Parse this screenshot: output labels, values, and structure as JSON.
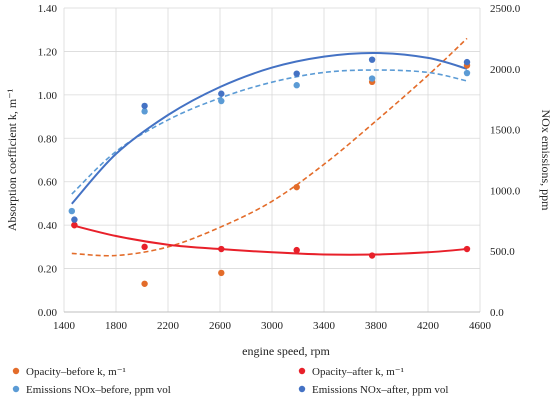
{
  "chart_data": {
    "type": "scatter",
    "title": "",
    "xlabel": "engine speed, rpm",
    "ylabel_left": "Absorption coefficient k, m⁻¹",
    "ylabel_right": "NOx emissions, ppm",
    "xlim": [
      1400,
      4600
    ],
    "xticks": [
      1400,
      1800,
      2200,
      2600,
      3000,
      3400,
      3800,
      4200,
      4600
    ],
    "ylim_left": [
      0,
      1.4
    ],
    "yticks_left": [
      "0.00",
      "0.20",
      "0.40",
      "0.60",
      "0.80",
      "1.00",
      "1.20",
      "1.40"
    ],
    "ylim_right": [
      0,
      2500
    ],
    "yticks_right": [
      "0.0",
      "500.0",
      "1000.0",
      "1500.0",
      "2000.0",
      "2500.0"
    ],
    "grid": true,
    "legend_position": "bottom",
    "series": [
      {
        "name": "Opacity–before  k, m⁻¹",
        "axis": "left",
        "color": "#e36c2a",
        "trendline": "dashed",
        "x": [
          1480,
          2020,
          2610,
          3190,
          3770,
          4500
        ],
        "y": [
          0.4,
          0.13,
          0.18,
          0.575,
          1.06,
          1.135
        ]
      },
      {
        "name": "Opacity–after  k, m⁻¹",
        "axis": "left",
        "color": "#e8202a",
        "trendline": "solid",
        "x": [
          1480,
          2020,
          2610,
          3190,
          3770,
          4500
        ],
        "y": [
          0.4,
          0.3,
          0.29,
          0.285,
          0.26,
          0.29
        ]
      },
      {
        "name": "Emissions NOx–before, ppm vol",
        "axis": "right",
        "color": "#5b9bd5",
        "trendline": "dashed",
        "x": [
          1460,
          2020,
          2610,
          3190,
          3770,
          4500
        ],
        "y": [
          830,
          1650,
          1735,
          1865,
          1920,
          1965
        ]
      },
      {
        "name": "Emissions NOx–after, ppm vol",
        "axis": "right",
        "color": "#4472c4",
        "trendline": "solid",
        "x": [
          1480,
          2020,
          2610,
          3190,
          3770,
          4500
        ],
        "y": [
          760,
          1695,
          1795,
          1960,
          2075,
          2055
        ]
      }
    ],
    "trendlines": {
      "opacity_before": [
        [
          1460,
          0.27
        ],
        [
          1800,
          0.26
        ],
        [
          2200,
          0.3
        ],
        [
          2600,
          0.39
        ],
        [
          3000,
          0.51
        ],
        [
          3400,
          0.68
        ],
        [
          3800,
          0.88
        ],
        [
          4200,
          1.09
        ],
        [
          4500,
          1.26
        ]
      ],
      "opacity_after": [
        [
          1460,
          0.4
        ],
        [
          1800,
          0.35
        ],
        [
          2200,
          0.31
        ],
        [
          2600,
          0.29
        ],
        [
          3000,
          0.275
        ],
        [
          3400,
          0.265
        ],
        [
          3800,
          0.265
        ],
        [
          4200,
          0.275
        ],
        [
          4500,
          0.29
        ]
      ],
      "nox_before": [
        [
          1460,
          970
        ],
        [
          1800,
          1320
        ],
        [
          2200,
          1580
        ],
        [
          2600,
          1760
        ],
        [
          3000,
          1890
        ],
        [
          3400,
          1970
        ],
        [
          3800,
          1990
        ],
        [
          4200,
          1970
        ],
        [
          4500,
          1900
        ]
      ],
      "nox_after": [
        [
          1460,
          890
        ],
        [
          1800,
          1300
        ],
        [
          2200,
          1620
        ],
        [
          2600,
          1850
        ],
        [
          3000,
          2010
        ],
        [
          3400,
          2100
        ],
        [
          3800,
          2130
        ],
        [
          4200,
          2090
        ],
        [
          4500,
          2000
        ]
      ]
    }
  }
}
